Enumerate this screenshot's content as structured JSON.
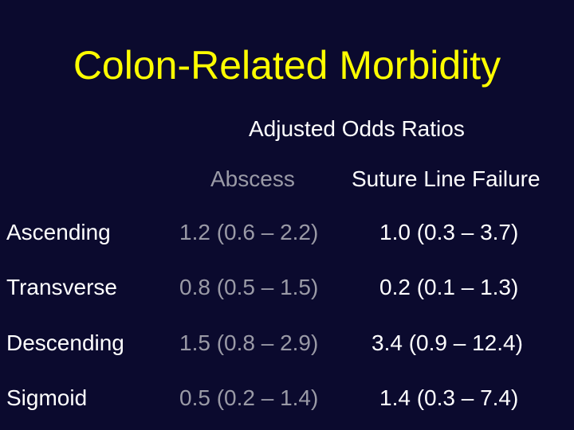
{
  "title": "Colon-Related Morbidity",
  "subtitle": "Adjusted Odds Ratios",
  "columns": {
    "abscess": "Abscess",
    "suture": "Suture Line Failure"
  },
  "rows": [
    {
      "label": "Ascending",
      "abscess": "1.2 (0.6 – 2.2)",
      "suture": "1.0 (0.3 – 3.7)"
    },
    {
      "label": "Transverse",
      "abscess": "0.8 (0.5 – 1.5)",
      "suture": "0.2 (0.1 – 1.3)"
    },
    {
      "label": "Descending",
      "abscess": "1.5 (0.8 – 2.9)",
      "suture": "3.4 (0.9 – 12.4)"
    },
    {
      "label": "Sigmoid",
      "abscess": "0.5 (0.2 – 1.4)",
      "suture": "1.4 (0.3 – 7.4)"
    }
  ],
  "colors": {
    "background": "#0b0a2e",
    "title": "#ffff00",
    "text": "#ffffff",
    "abscess_text": "#9a9aa6"
  }
}
